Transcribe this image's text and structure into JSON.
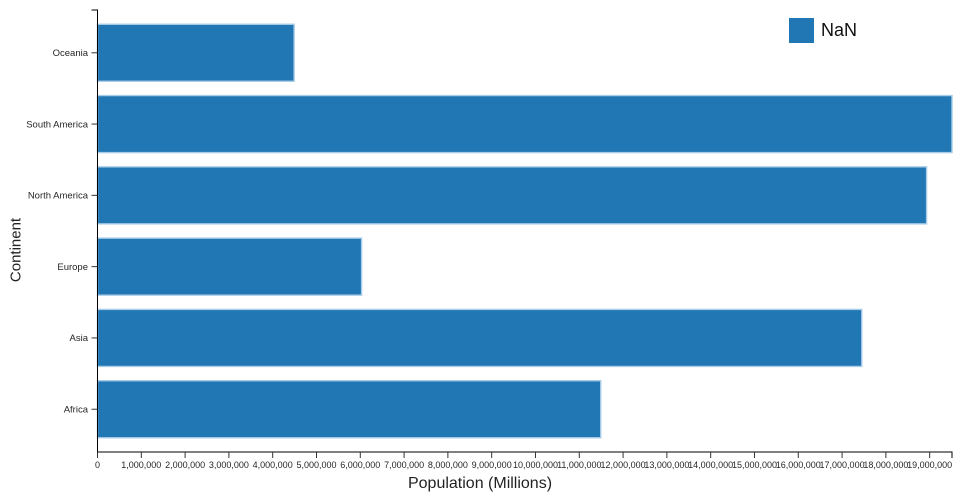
{
  "page": {
    "background": "#ffffff"
  },
  "chart_data": {
    "type": "bar",
    "orientation": "horizontal",
    "title": "",
    "xlabel": "Population (Millions)",
    "ylabel": "Continent",
    "categories": [
      "Oceania",
      "South America",
      "North America",
      "Europe",
      "Asia",
      "Africa"
    ],
    "values": [
      4490000,
      19510000,
      18930000,
      6030000,
      17450000,
      11490000
    ],
    "xlim": [
      0,
      19510000
    ],
    "x_ticks": {
      "start": 0,
      "step": 1000000,
      "end": 19000000,
      "format": "comma"
    },
    "legend": {
      "label": "NaN",
      "position": "top-right"
    },
    "colors": {
      "bar_fill": "#2077b4",
      "bar_stroke": "#a9cde8",
      "axis_line": "#000000",
      "tick_line": "#333333",
      "tick_text": "#262626"
    },
    "grid": false,
    "legend_label": "NaN"
  }
}
